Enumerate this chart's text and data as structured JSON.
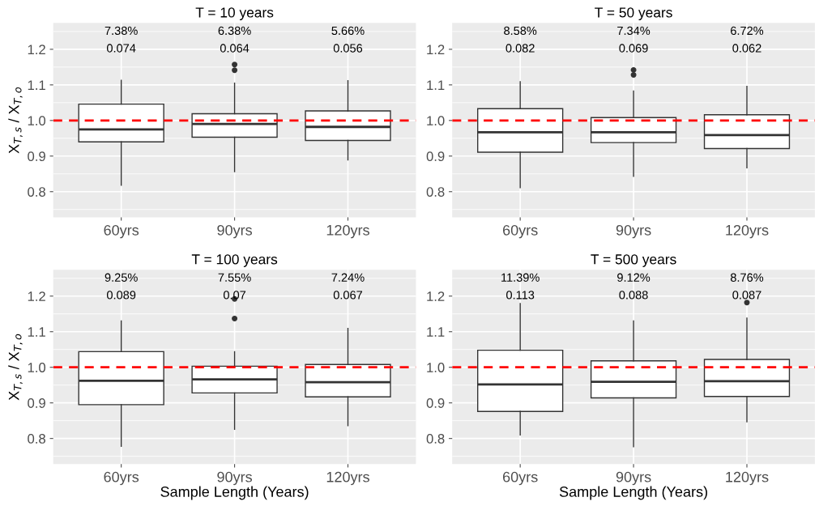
{
  "chart_data": [
    {
      "type": "box",
      "title": "T = 10 years",
      "ylabel": "X$_{T,s}$ / X$_{T,o}$",
      "categories": [
        "60yrs",
        "90yrs",
        "120yrs"
      ],
      "boxes": [
        {
          "low": 0.818,
          "q1": 0.94,
          "median": 0.975,
          "q3": 1.046,
          "high": 1.113
        },
        {
          "low": 0.856,
          "q1": 0.953,
          "median": 0.99,
          "q3": 1.019,
          "high": 1.105,
          "outliers": [
            1.157,
            1.141
          ]
        },
        {
          "low": 0.889,
          "q1": 0.944,
          "median": 0.982,
          "q3": 1.027,
          "high": 1.112
        }
      ],
      "ylim": [
        0.728,
        1.274
      ],
      "yticks": [
        {
          "value": 0.8,
          "label": "0.8"
        },
        {
          "value": 0.9,
          "label": "0.9"
        },
        {
          "value": 1.0,
          "label": "1.0"
        },
        {
          "value": 1.1,
          "label": "1.1"
        },
        {
          "value": 1.2,
          "label": "1.2"
        }
      ],
      "ref_lines": [
        {
          "axis": "y",
          "value": 1.0,
          "color": "#ff0000",
          "line_style": "dashed"
        }
      ],
      "annotations": [
        "7.38%",
        "6.38%",
        "5.66%",
        "0.074",
        "0.064",
        "0.056"
      ],
      "grid": true
    },
    {
      "type": "box",
      "title": "T = 50 years",
      "categories": [
        "60yrs",
        "90yrs",
        "120yrs"
      ],
      "boxes": [
        {
          "low": 0.811,
          "q1": 0.911,
          "median": 0.967,
          "q3": 1.033,
          "high": 1.109
        },
        {
          "low": 0.843,
          "q1": 0.938,
          "median": 0.967,
          "q3": 1.008,
          "high": 1.083,
          "outliers": [
            1.142,
            1.128
          ]
        },
        {
          "low": 0.867,
          "q1": 0.921,
          "median": 0.959,
          "q3": 1.016,
          "high": 1.096
        }
      ],
      "ylim": [
        0.728,
        1.274
      ],
      "yticks": [
        {
          "value": 0.8,
          "label": "0.8"
        },
        {
          "value": 0.9,
          "label": "0.9"
        },
        {
          "value": 1.0,
          "label": "1.0"
        },
        {
          "value": 1.1,
          "label": "1.1"
        },
        {
          "value": 1.2,
          "label": "1.2"
        }
      ],
      "ref_lines": [
        {
          "axis": "y",
          "value": 1.0,
          "color": "#ff0000",
          "line_style": "dashed"
        }
      ],
      "annotations": [
        "8.58%",
        "7.34%",
        "6.72%",
        "0.082",
        "0.069",
        "0.062"
      ],
      "grid": true
    },
    {
      "type": "box",
      "title": "T = 100 years",
      "ylabel": "X$_{T,s}$ / X$_{T,o}$",
      "xlabel": "Sample Length (Years)",
      "categories": [
        "60yrs",
        "90yrs",
        "120yrs"
      ],
      "boxes": [
        {
          "low": 0.778,
          "q1": 0.895,
          "median": 0.962,
          "q3": 1.044,
          "high": 1.13
        },
        {
          "low": 0.826,
          "q1": 0.928,
          "median": 0.966,
          "q3": 1.003,
          "high": 1.044,
          "outliers": [
            1.192,
            1.137
          ]
        },
        {
          "low": 0.836,
          "q1": 0.917,
          "median": 0.958,
          "q3": 1.008,
          "high": 1.109
        }
      ],
      "ylim": [
        0.728,
        1.274
      ],
      "yticks": [
        {
          "value": 0.8,
          "label": "0.8"
        },
        {
          "value": 0.9,
          "label": "0.9"
        },
        {
          "value": 1.0,
          "label": "1.0"
        },
        {
          "value": 1.1,
          "label": "1.1"
        },
        {
          "value": 1.2,
          "label": "1.2"
        }
      ],
      "ref_lines": [
        {
          "axis": "y",
          "value": 1.0,
          "color": "#ff0000",
          "line_style": "dashed"
        }
      ],
      "annotations": [
        "9.25%",
        "7.55%",
        "7.24%",
        "0.089",
        "0.07",
        "0.067"
      ],
      "grid": true
    },
    {
      "type": "box",
      "title": "T = 500 years",
      "xlabel": "Sample Length (Years)",
      "categories": [
        "60yrs",
        "90yrs",
        "120yrs"
      ],
      "boxes": [
        {
          "low": 0.81,
          "q1": 0.876,
          "median": 0.952,
          "q3": 1.048,
          "high": 1.179
        },
        {
          "low": 0.777,
          "q1": 0.914,
          "median": 0.959,
          "q3": 1.018,
          "high": 1.13
        },
        {
          "low": 0.847,
          "q1": 0.918,
          "median": 0.961,
          "q3": 1.022,
          "high": 1.138,
          "outliers": [
            1.182
          ]
        }
      ],
      "ylim": [
        0.728,
        1.274
      ],
      "yticks": [
        {
          "value": 0.8,
          "label": "0.8"
        },
        {
          "value": 0.9,
          "label": "0.9"
        },
        {
          "value": 1.0,
          "label": "1.0"
        },
        {
          "value": 1.1,
          "label": "1.1"
        },
        {
          "value": 1.2,
          "label": "1.2"
        }
      ],
      "ref_lines": [
        {
          "axis": "y",
          "value": 1.0,
          "color": "#ff0000",
          "line_style": "dashed"
        }
      ],
      "annotations": [
        "11.39%",
        "9.12%",
        "8.76%",
        "0.113",
        "0.088",
        "0.087"
      ],
      "grid": true
    }
  ]
}
